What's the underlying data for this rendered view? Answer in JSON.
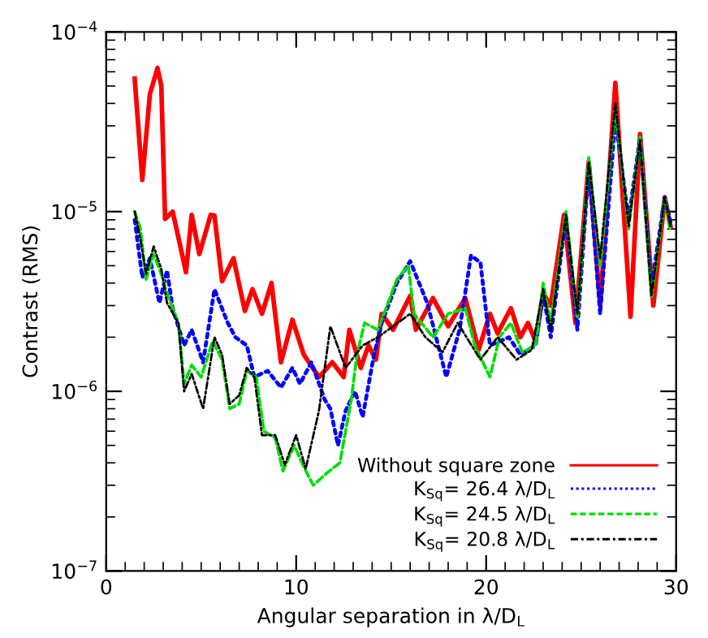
{
  "chart_data": {
    "type": "line",
    "xlabel": "Angular separation in λ/D$_{L}$",
    "ylabel": "Contrast (RMS)",
    "log": "y",
    "xlim": [
      0,
      30
    ],
    "xticks": [
      0,
      10,
      20,
      30
    ],
    "ylim": [
      1e-07,
      0.0001
    ],
    "yticks": [
      {
        "value": 1e-07,
        "label": "10$^{−7}$"
      },
      {
        "value": 1e-06,
        "label": "10$^{−6}$"
      },
      {
        "value": 1e-05,
        "label": "10$^{−5}$"
      },
      {
        "value": 0.0001,
        "label": "10$^{−4}$"
      }
    ],
    "grid": false,
    "legend": "bottom right",
    "marker": "none",
    "series": [
      {
        "name": "Without square zone",
        "color": "#ff0000",
        "line_style": "solid",
        "x": [
          1.5,
          1.9,
          2.3,
          2.7,
          2.9,
          3.1,
          3.5,
          4.2,
          4.5,
          4.9,
          5.5,
          5.7,
          6.1,
          6.7,
          7.3,
          7.7,
          8.2,
          8.7,
          9.2,
          9.8,
          10.4,
          11.2,
          11.9,
          12.5,
          12.8,
          13.4,
          13.8,
          14.2,
          14.5,
          15.1,
          16.0,
          16.3,
          17.2,
          18.0,
          18.9,
          19.6,
          20.2,
          20.6,
          21.3,
          21.8,
          22.2,
          22.6,
          23.0,
          23.4,
          24.1,
          24.7,
          25.4,
          26.0,
          26.8,
          27.6,
          28.1,
          28.8,
          29.4,
          29.7
        ],
        "values": [
          5.5e-05,
          1.5e-05,
          4.5e-05,
          6.3e-05,
          5e-05,
          9.1e-06,
          1e-05,
          4.6e-06,
          9.6e-06,
          5.8e-06,
          9.6e-06,
          9.5e-06,
          4.1e-06,
          5.5e-06,
          2.8e-06,
          3.7e-06,
          2.7e-06,
          4e-06,
          1.45e-06,
          2.5e-06,
          1.6e-06,
          1.2e-06,
          1.45e-06,
          1.2e-06,
          2.2e-06,
          1.35e-06,
          1.8e-06,
          1.5e-06,
          2.7e-06,
          2.2e-06,
          3.4e-06,
          2.2e-06,
          3.3e-06,
          2.3e-06,
          3.3e-06,
          1.7e-06,
          2.7e-06,
          2.1e-06,
          2.9e-06,
          2e-06,
          2.4e-06,
          1.9e-06,
          3.5e-06,
          3e-06,
          9.6e-06,
          2.4e-06,
          1.9e-05,
          3e-06,
          5.2e-05,
          2.6e-06,
          2.7e-05,
          3e-06,
          1.2e-05,
          8.3e-06
        ]
      },
      {
        "name": "K$_{Sq}$= 26.4 λ/D$_{L}$",
        "color": "#0000ff",
        "line_style": "dotted",
        "x": [
          1.5,
          1.9,
          2.3,
          2.8,
          3.2,
          3.5,
          4.1,
          4.5,
          5.1,
          5.7,
          6.4,
          6.8,
          7.4,
          7.8,
          8.5,
          9.2,
          9.8,
          10.2,
          10.8,
          11.5,
          11.8,
          12.2,
          12.6,
          13.1,
          13.5,
          14.1,
          14.5,
          15.3,
          16.0,
          16.9,
          17.9,
          18.6,
          19.2,
          19.7,
          20.2,
          21.2,
          21.8,
          22.6,
          23.0,
          23.4,
          24.2,
          24.8,
          25.4,
          26.0,
          26.8,
          27.5,
          28.1,
          28.7,
          29.4,
          29.7
        ],
        "values": [
          9e-06,
          4.3e-06,
          5.5e-06,
          3.1e-06,
          4.7e-06,
          2.9e-06,
          1.8e-06,
          2.2e-06,
          1.45e-06,
          3.7e-06,
          2.4e-06,
          2e-06,
          1.8e-06,
          1.2e-06,
          1.3e-06,
          1.05e-06,
          1.35e-06,
          1.1e-06,
          1.45e-06,
          9e-07,
          8e-07,
          5e-07,
          7.8e-07,
          1e-06,
          7.2e-07,
          1.6e-06,
          2.4e-06,
          4e-06,
          5.3e-06,
          3.1e-06,
          1.2e-06,
          2.2e-06,
          5.7e-06,
          5.2e-06,
          1.8e-06,
          2e-06,
          1.6e-06,
          1.8e-06,
          3.5e-06,
          2e-06,
          9.5e-06,
          2.2e-06,
          1.8e-05,
          2.7e-06,
          3.3e-05,
          9e-06,
          2.6e-05,
          3.8e-06,
          1.2e-05,
          8.8e-06
        ]
      },
      {
        "name": "K$_{Sq}$= 24.5 λ/D$_{L}$",
        "color": "#00dd00",
        "line_style": "dashed",
        "x": [
          1.5,
          1.8,
          2.1,
          2.5,
          2.9,
          3.2,
          3.8,
          4.1,
          4.5,
          5.0,
          5.6,
          6.1,
          6.5,
          7.0,
          7.4,
          7.9,
          8.3,
          8.9,
          9.3,
          9.9,
          10.4,
          10.9,
          11.6,
          12.3,
          12.9,
          13.2,
          13.6,
          14.3,
          15.3,
          15.9,
          16.2,
          17.2,
          18.0,
          18.9,
          19.4,
          20.2,
          20.7,
          21.3,
          21.9,
          22.6,
          23.0,
          23.4,
          24.2,
          24.8,
          25.4,
          26.0,
          26.8,
          27.5,
          28.1,
          28.7,
          29.4,
          29.7
        ],
        "values": [
          1e-05,
          8e-06,
          4.2e-06,
          5.8e-06,
          4.5e-06,
          3.5e-06,
          2.4e-06,
          1.1e-06,
          1.4e-06,
          1.2e-06,
          1.9e-06,
          1.5e-06,
          8e-07,
          8.5e-07,
          1.3e-06,
          1.2e-06,
          6e-07,
          5.5e-07,
          3.6e-07,
          5e-07,
          3.8e-07,
          3e-07,
          3.5e-07,
          4e-07,
          9e-07,
          1.6e-06,
          2.4e-06,
          2.2e-06,
          4.2e-06,
          5e-06,
          2.7e-06,
          2e-06,
          2.7e-06,
          2.9e-06,
          1.8e-06,
          1.2e-06,
          2e-06,
          2.4e-06,
          1.65e-06,
          1.8e-06,
          4e-06,
          2.4e-06,
          1e-05,
          2.6e-06,
          2e-05,
          5e-06,
          3.8e-05,
          8e-06,
          2.6e-05,
          3.3e-06,
          1.2e-05,
          7.8e-06
        ]
      },
      {
        "name": "K$_{Sq}$= 20.8 λ/D$_{L}$",
        "color": "#000000",
        "line_style": "dashdot",
        "x": [
          1.5,
          1.8,
          2.1,
          2.5,
          2.9,
          3.2,
          3.8,
          4.1,
          4.5,
          5.1,
          5.7,
          6.1,
          6.5,
          7.0,
          7.4,
          7.8,
          8.2,
          8.9,
          9.4,
          10.0,
          10.5,
          11.2,
          11.8,
          12.6,
          13.5,
          14.3,
          15.1,
          16.0,
          16.8,
          17.7,
          18.5,
          19.7,
          20.6,
          21.6,
          22.4,
          23.0,
          23.4,
          24.2,
          24.8,
          25.4,
          26.0,
          26.8,
          27.5,
          28.1,
          28.7,
          29.4,
          29.7
        ],
        "values": [
          1e-05,
          7e-06,
          4.5e-06,
          6.4e-06,
          4.8e-06,
          3.1e-06,
          2.4e-06,
          1e-06,
          1.25e-06,
          8e-07,
          2e-06,
          1.6e-06,
          8.5e-07,
          9.5e-07,
          1.35e-06,
          1.2e-06,
          5.7e-07,
          5.7e-07,
          3.9e-07,
          5.7e-07,
          3.7e-07,
          7.8e-07,
          2.3e-06,
          1.35e-06,
          1.8e-06,
          2e-06,
          2.3e-06,
          2.7e-06,
          2e-06,
          1.65e-06,
          2.4e-06,
          1.5e-06,
          2e-06,
          1.5e-06,
          1.7e-06,
          3.7e-06,
          2.2e-06,
          9.6e-06,
          2.7e-06,
          1.9e-05,
          5.5e-06,
          4e-05,
          8.3e-06,
          2.5e-05,
          3.4e-06,
          1.2e-05,
          8.3e-06
        ]
      }
    ]
  }
}
